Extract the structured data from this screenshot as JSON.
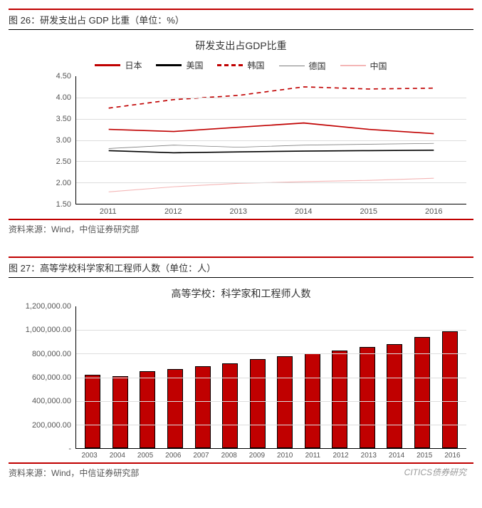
{
  "figure26": {
    "header": "图 26：研发支出占 GDP 比重（单位：%）",
    "title": "研发支出占GDP比重",
    "type": "line",
    "y": {
      "min": 1.5,
      "max": 4.5,
      "ticks": [
        "4.50",
        "4.00",
        "3.50",
        "3.00",
        "2.50",
        "2.00",
        "1.50"
      ]
    },
    "x_labels": [
      "2011",
      "2012",
      "2013",
      "2014",
      "2015",
      "2016"
    ],
    "series": [
      {
        "name": "日本",
        "color": "#c00000",
        "width": 3,
        "dash": "none",
        "values": [
          3.25,
          3.2,
          3.3,
          3.4,
          3.25,
          3.15
        ]
      },
      {
        "name": "美国",
        "color": "#000000",
        "width": 3,
        "dash": "none",
        "values": [
          2.75,
          2.7,
          2.72,
          2.74,
          2.75,
          2.76
        ]
      },
      {
        "name": "韩国",
        "color": "#c00000",
        "width": 3,
        "dash": "6,5",
        "values": [
          3.75,
          3.95,
          4.05,
          4.25,
          4.2,
          4.22
        ]
      },
      {
        "name": "德国",
        "color": "#7f7f7f",
        "width": 1.5,
        "dash": "none",
        "values": [
          2.8,
          2.88,
          2.83,
          2.88,
          2.9,
          2.92
        ]
      },
      {
        "name": "中国",
        "color": "#f4b6b6",
        "width": 2,
        "dash": "none",
        "values": [
          1.78,
          1.9,
          1.98,
          2.02,
          2.05,
          2.1
        ]
      }
    ],
    "grid_color": "#dddddd",
    "source": "资料来源：Wind，中信证券研究部"
  },
  "figure27": {
    "header": "图 27：高等学校科学家和工程师人数（单位：人）",
    "title": "高等学校：科学家和工程师人数",
    "type": "bar",
    "y": {
      "min": 0,
      "max": 1200000,
      "ticks": [
        "1,200,000.00",
        "1,000,000.00",
        "800,000.00",
        "600,000.00",
        "400,000.00",
        "200,000.00",
        "-"
      ]
    },
    "x_labels": [
      "2003",
      "2004",
      "2005",
      "2006",
      "2007",
      "2008",
      "2009",
      "2010",
      "2011",
      "2012",
      "2013",
      "2014",
      "2015",
      "2016"
    ],
    "values": [
      620000,
      610000,
      650000,
      670000,
      695000,
      720000,
      755000,
      775000,
      800000,
      825000,
      855000,
      880000,
      940000,
      990000
    ],
    "bar_color": "#c00000",
    "bar_border": "#000000",
    "grid_color": "#dddddd",
    "source": "资料来源：Wind，中信证券研究部"
  },
  "watermark": "CITICS债券研究"
}
